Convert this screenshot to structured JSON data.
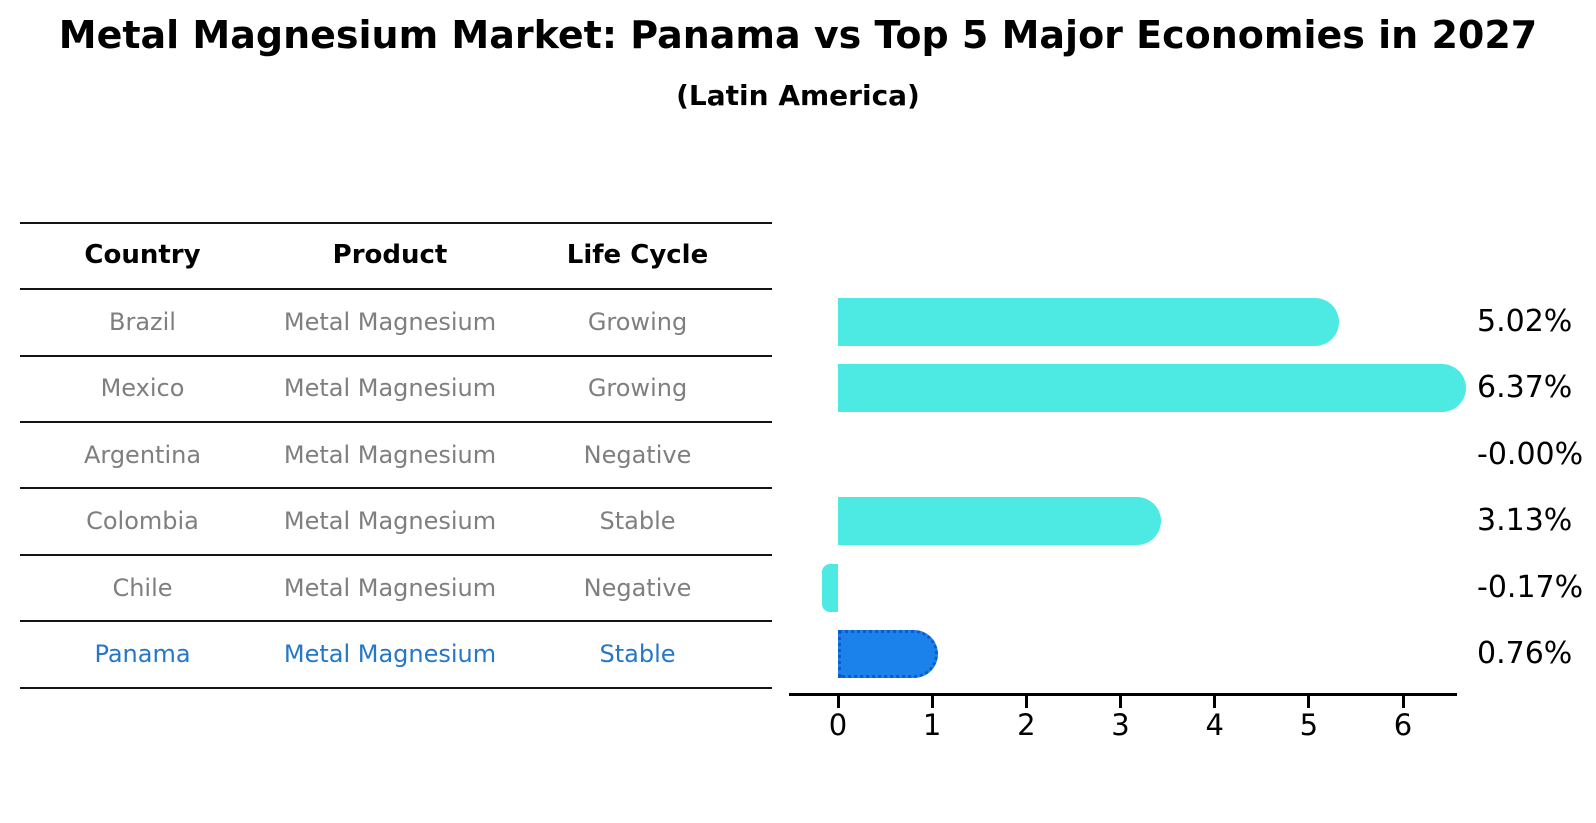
{
  "title": "Metal Magnesium Market: Panama vs Top 5 Major Economies in 2027",
  "subtitle": "(Latin America)",
  "colors": {
    "bar_cyan": "#4DE9E3",
    "bar_blue": "#1B82EC",
    "highlight_border": "#0A5BD0",
    "highlight_text": "#2577C9",
    "row_text": "#7F7F7F",
    "axis": "#000000"
  },
  "table": {
    "headers": [
      "Country",
      "Product",
      "Life Cycle"
    ],
    "rows": [
      {
        "country": "Brazil",
        "product": "Metal Magnesium",
        "life_cycle": "Growing",
        "highlight": false
      },
      {
        "country": "Mexico",
        "product": "Metal Magnesium",
        "life_cycle": "Growing",
        "highlight": false
      },
      {
        "country": "Argentina",
        "product": "Metal Magnesium",
        "life_cycle": "Negative",
        "highlight": false
      },
      {
        "country": "Colombia",
        "product": "Metal Magnesium",
        "life_cycle": "Stable",
        "highlight": false
      },
      {
        "country": "Chile",
        "product": "Metal Magnesium",
        "life_cycle": "Negative",
        "highlight": false
      },
      {
        "country": "Panama",
        "product": "Metal Magnesium",
        "life_cycle": "Stable",
        "highlight": true
      }
    ]
  },
  "chart_data": {
    "type": "bar",
    "orientation": "horizontal",
    "title": "Metal Magnesium Market: Panama vs Top 5 Major Economies in 2027 (Latin America)",
    "categories": [
      "Brazil",
      "Mexico",
      "Argentina",
      "Colombia",
      "Chile",
      "Panama"
    ],
    "values": [
      5.02,
      6.37,
      -0.0,
      3.13,
      -0.17,
      0.76
    ],
    "value_labels": [
      "5.02%",
      "6.37%",
      "-0.00%",
      "3.13%",
      "-0.17%",
      "0.76%"
    ],
    "value_suffix": "%",
    "highlight_category": "Panama",
    "x_ticks": [
      0,
      1,
      2,
      3,
      4,
      5,
      6
    ],
    "xlim": [
      -0.52,
      6.57
    ],
    "grid": false,
    "legend": false
  }
}
